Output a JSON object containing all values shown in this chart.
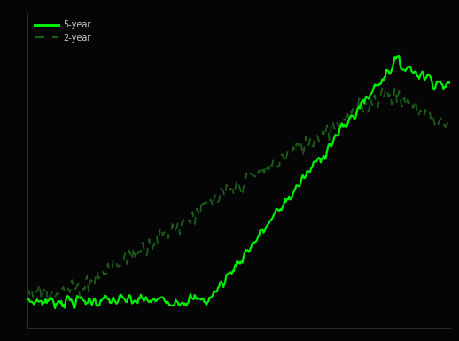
{
  "background_color": "#050505",
  "line1_color": "#00ee00",
  "line2_color": "#1a5c1a",
  "line1_label": "5-year",
  "line2_label": "2-year",
  "figsize": [
    5.18,
    3.85
  ],
  "dpi": 100,
  "n_points": 400,
  "border_color": "#2a2a2a",
  "legend_label_color": "#cccccc"
}
